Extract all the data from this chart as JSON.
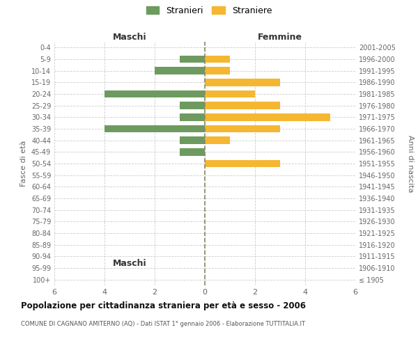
{
  "age_groups": [
    "100+",
    "95-99",
    "90-94",
    "85-89",
    "80-84",
    "75-79",
    "70-74",
    "65-69",
    "60-64",
    "55-59",
    "50-54",
    "45-49",
    "40-44",
    "35-39",
    "30-34",
    "25-29",
    "20-24",
    "15-19",
    "10-14",
    "5-9",
    "0-4"
  ],
  "birth_years": [
    "≤ 1905",
    "1906-1910",
    "1911-1915",
    "1916-1920",
    "1921-1925",
    "1926-1930",
    "1931-1935",
    "1936-1940",
    "1941-1945",
    "1946-1950",
    "1951-1955",
    "1956-1960",
    "1961-1965",
    "1966-1970",
    "1971-1975",
    "1976-1980",
    "1981-1985",
    "1986-1990",
    "1991-1995",
    "1996-2000",
    "2001-2005"
  ],
  "males": [
    0,
    0,
    0,
    0,
    0,
    0,
    0,
    0,
    0,
    0,
    0,
    1,
    1,
    4,
    1,
    1,
    4,
    0,
    2,
    1,
    0
  ],
  "females": [
    0,
    0,
    0,
    0,
    0,
    0,
    0,
    0,
    0,
    0,
    3,
    0,
    1,
    3,
    5,
    3,
    2,
    3,
    1,
    1,
    0
  ],
  "male_color": "#6d9b5f",
  "female_color": "#f5b731",
  "title": "Popolazione per cittadinanza straniera per età e sesso - 2006",
  "subtitle": "COMUNE DI CAGNANO AMITERNO (AQ) - Dati ISTAT 1° gennaio 2006 - Elaborazione TUTTITALIA.IT",
  "ylabel_left": "Fasce di età",
  "ylabel_right": "Anni di nascita",
  "xlabel_left": "Maschi",
  "xlabel_right": "Femmine",
  "legend_males": "Stranieri",
  "legend_females": "Straniere",
  "xlim": 6,
  "background_color": "#ffffff",
  "grid_color": "#cccccc",
  "axis_center_color": "#888866"
}
